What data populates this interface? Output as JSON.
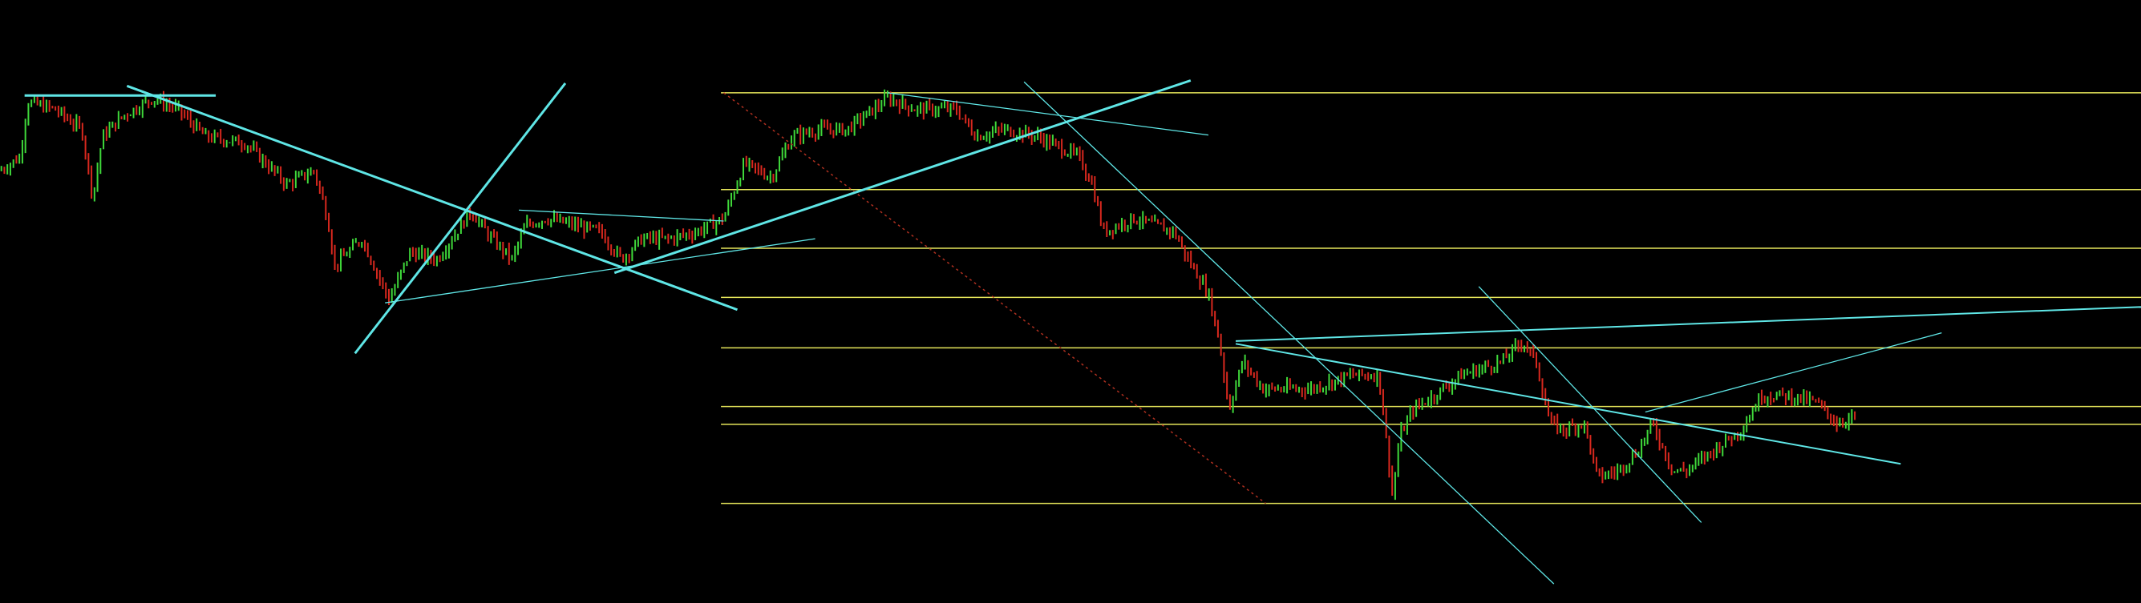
{
  "chart_data": {
    "type": "ohlc",
    "title": "",
    "xlabel": "",
    "ylabel": "",
    "grid": false,
    "xlim": [
      0,
      1568
    ],
    "ylim": [
      0,
      442
    ],
    "colors": {
      "background": "#000000",
      "up_bar": "#3fd83a",
      "down_bar": "#d8281e",
      "level_line": "#e6e65a",
      "trend_line": "#5fe6e6",
      "dotted_line": "#b03020"
    },
    "price_path": [
      [
        0,
        317
      ],
      [
        15,
        327
      ],
      [
        20,
        367
      ],
      [
        40,
        362
      ],
      [
        60,
        347
      ],
      [
        68,
        297
      ],
      [
        75,
        342
      ],
      [
        90,
        357
      ],
      [
        112,
        370
      ],
      [
        130,
        362
      ],
      [
        150,
        342
      ],
      [
        180,
        337
      ],
      [
        210,
        307
      ],
      [
        230,
        317
      ],
      [
        240,
        282
      ],
      [
        245,
        247
      ],
      [
        265,
        267
      ],
      [
        285,
        222
      ],
      [
        300,
        257
      ],
      [
        320,
        252
      ],
      [
        345,
        287
      ],
      [
        360,
        267
      ],
      [
        375,
        252
      ],
      [
        385,
        277
      ],
      [
        400,
        282
      ],
      [
        420,
        277
      ],
      [
        440,
        272
      ],
      [
        455,
        252
      ],
      [
        470,
        267
      ],
      [
        490,
        267
      ],
      [
        510,
        272
      ],
      [
        530,
        282
      ],
      [
        545,
        322
      ],
      [
        565,
        312
      ],
      [
        580,
        342
      ],
      [
        600,
        347
      ],
      [
        620,
        347
      ],
      [
        640,
        362
      ],
      [
        650,
        370
      ],
      [
        670,
        362
      ],
      [
        700,
        362
      ],
      [
        715,
        342
      ],
      [
        735,
        347
      ],
      [
        760,
        342
      ],
      [
        790,
        327
      ],
      [
        800,
        307
      ],
      [
        808,
        272
      ],
      [
        830,
        282
      ],
      [
        860,
        272
      ],
      [
        870,
        252
      ],
      [
        885,
        227
      ],
      [
        893,
        192
      ],
      [
        900,
        142
      ],
      [
        910,
        177
      ],
      [
        925,
        157
      ],
      [
        960,
        157
      ],
      [
        990,
        167
      ],
      [
        1010,
        167
      ],
      [
        1015,
        122
      ],
      [
        1020,
        77
      ],
      [
        1025,
        122
      ],
      [
        1035,
        142
      ],
      [
        1050,
        152
      ],
      [
        1070,
        167
      ],
      [
        1100,
        177
      ],
      [
        1115,
        192
      ],
      [
        1125,
        177
      ],
      [
        1135,
        132
      ],
      [
        1145,
        127
      ],
      [
        1160,
        132
      ],
      [
        1170,
        92
      ],
      [
        1185,
        97
      ],
      [
        1200,
        112
      ],
      [
        1210,
        132
      ],
      [
        1225,
        97
      ],
      [
        1235,
        97
      ],
      [
        1255,
        112
      ],
      [
        1275,
        127
      ],
      [
        1290,
        152
      ],
      [
        1310,
        152
      ],
      [
        1330,
        147
      ],
      [
        1345,
        132
      ],
      [
        1360,
        137
      ]
    ],
    "horizontal_levels": {
      "x_range": [
        528,
        1568
      ],
      "values": [
        374,
        303,
        260,
        224,
        187,
        144,
        131,
        73
      ]
    },
    "trend_lines": [
      {
        "from": [
          18,
          372
        ],
        "to": [
          158,
          372
        ],
        "weight": "thick"
      },
      {
        "from": [
          93,
          379
        ],
        "to": [
          540,
          215
        ],
        "weight": "thick"
      },
      {
        "from": [
          260,
          183
        ],
        "to": [
          414,
          381
        ],
        "weight": "thick"
      },
      {
        "from": [
          282,
          220
        ],
        "to": [
          597,
          267
        ],
        "weight": "thin"
      },
      {
        "from": [
          380,
          288
        ],
        "to": [
          530,
          280
        ],
        "weight": "thin"
      },
      {
        "from": [
          450,
          242
        ],
        "to": [
          872,
          383
        ],
        "weight": "thick"
      },
      {
        "from": [
          650,
          374
        ],
        "to": [
          885,
          343
        ],
        "weight": "thin"
      },
      {
        "from": [
          750,
          382
        ],
        "to": [
          1138,
          14
        ],
        "weight": "thin"
      },
      {
        "from": [
          905,
          192
        ],
        "to": [
          1568,
          217
        ],
        "weight": "medium"
      },
      {
        "from": [
          905,
          190
        ],
        "to": [
          1392,
          102
        ],
        "weight": "medium"
      },
      {
        "from": [
          1083,
          232
        ],
        "to": [
          1246,
          59
        ],
        "weight": "thin"
      },
      {
        "from": [
          1205,
          140
        ],
        "to": [
          1422,
          198
        ],
        "weight": "thin"
      }
    ],
    "dotted_lines": [
      {
        "from": [
          530,
          374
        ],
        "to": [
          927,
          73
        ]
      }
    ]
  }
}
